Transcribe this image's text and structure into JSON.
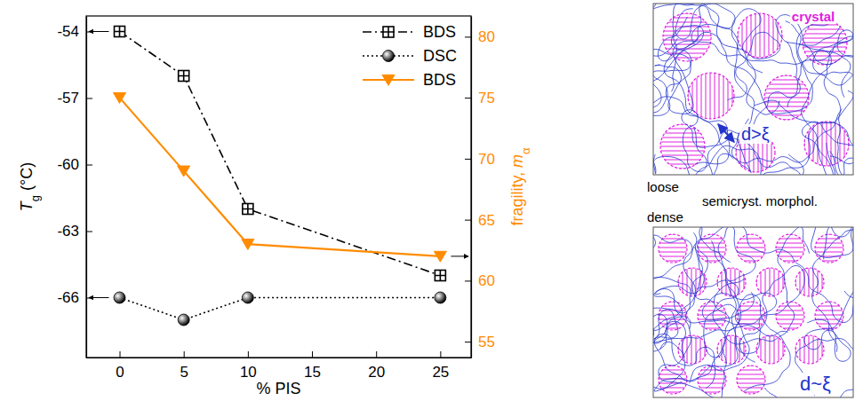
{
  "chart_data": {
    "type": "line",
    "x_label": "% PIS",
    "y_label": "Tg (°C)",
    "y2_label": "fragility, mα",
    "x": [
      0,
      5,
      10,
      25
    ],
    "xlim": [
      -2.6,
      27.4
    ],
    "xticks": [
      0,
      5,
      10,
      15,
      20,
      25
    ],
    "ylim": [
      -68.7,
      -53.3
    ],
    "yticks": [
      -54,
      -57,
      -60,
      -63,
      -66
    ],
    "y2lim": [
      53.7,
      81.7
    ],
    "y2ticks": [
      55,
      60,
      65,
      70,
      75,
      80
    ],
    "legend": "upper right",
    "series": [
      {
        "name": "BDS",
        "color": "#000000",
        "values": [
          -54,
          -56,
          -62,
          -65
        ],
        "marker": "square-cross",
        "line_style": "dash-dot"
      },
      {
        "name": "DSC",
        "color": "#000000",
        "values": [
          -66,
          -67,
          -66,
          -66
        ],
        "marker": "circle",
        "line_style": "dotted"
      },
      {
        "name": "BDS",
        "color": "#ff8c00",
        "values": [
          75,
          69,
          63,
          62
        ],
        "marker": "triangle-down",
        "line_style": "solid",
        "axis": "y2"
      }
    ],
    "annotations": [
      "crystal",
      "loose",
      "semicryst. morphol.",
      "dense",
      "d>ξ",
      "d~ξ"
    ]
  }
}
